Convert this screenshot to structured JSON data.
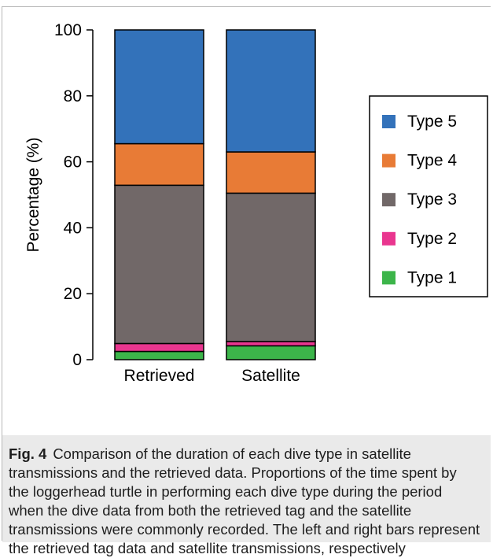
{
  "chart_data": {
    "type": "bar",
    "stacked": true,
    "categories": [
      "Retrieved",
      "Satellite"
    ],
    "series": [
      {
        "name": "Type 1",
        "color": "#3cb54a",
        "values": [
          2.5,
          4.2
        ]
      },
      {
        "name": "Type 2",
        "color": "#e9368f",
        "values": [
          2.4,
          1.3
        ]
      },
      {
        "name": "Type 3",
        "color": "#716868",
        "values": [
          48.0,
          45.0
        ]
      },
      {
        "name": "Type 4",
        "color": "#e87b36",
        "values": [
          12.6,
          12.5
        ]
      },
      {
        "name": "Type 5",
        "color": "#3372ba",
        "values": [
          34.5,
          37.0
        ]
      }
    ],
    "ylabel": "Percentage (%)",
    "xlabel": "",
    "ylim": [
      0,
      100
    ],
    "yticks": [
      0,
      20,
      40,
      60,
      80,
      100
    ],
    "legend_position": "right",
    "legend_order": [
      "Type 5",
      "Type 4",
      "Type 3",
      "Type 2",
      "Type 1"
    ],
    "grid": false
  },
  "caption": {
    "label": "Fig. 4",
    "text": "Comparison of the duration of each dive type in satellite transmissions and the retrieved data. Proportions of the time spent by the loggerhead turtle in performing each dive type during the period when the dive data from both the retrieved tag and the satellite transmissions were commonly recorded. The left and right bars represent the retrieved tag data and satellite transmissions, respectively"
  }
}
